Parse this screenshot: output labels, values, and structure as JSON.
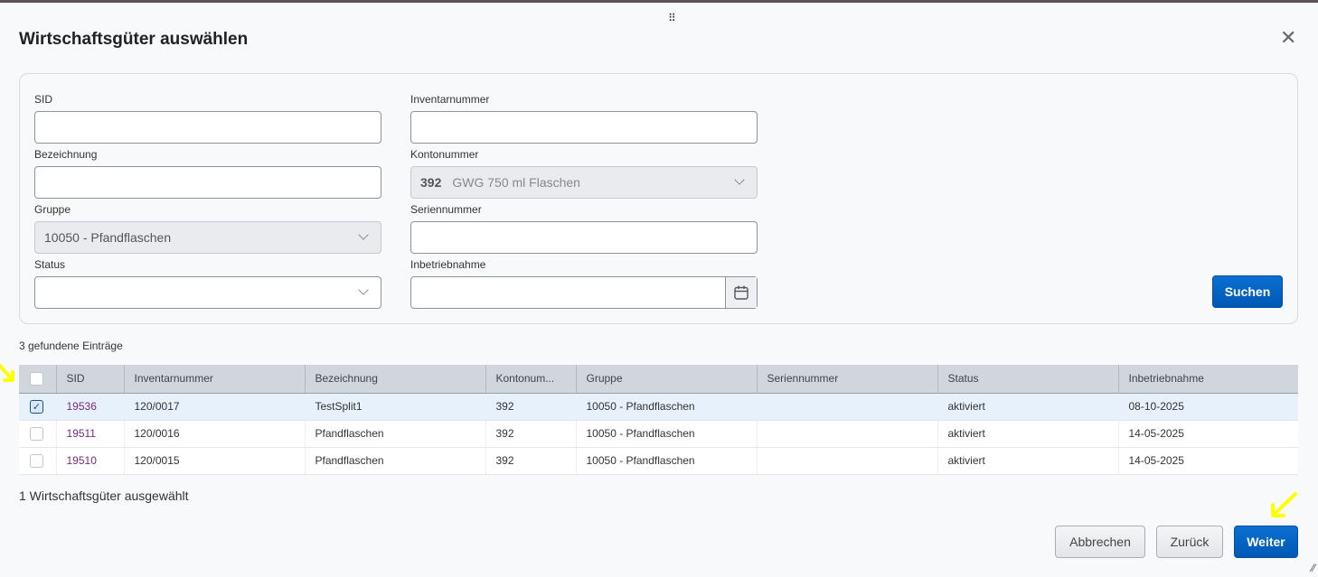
{
  "dialog": {
    "title": "Wirtschaftsgüter auswählen",
    "close_icon": "close-icon",
    "grip_icon": "drag-handle-icon"
  },
  "filters": {
    "sid": {
      "label": "SID",
      "value": ""
    },
    "inventarnummer": {
      "label": "Inventarnummer",
      "value": ""
    },
    "bezeichnung": {
      "label": "Bezeichnung",
      "value": ""
    },
    "kontonummer": {
      "label": "Kontonummer",
      "code": "392",
      "value": "GWG 750 ml Flaschen"
    },
    "gruppe": {
      "label": "Gruppe",
      "value": "10050 - Pfandflaschen"
    },
    "seriennummer": {
      "label": "Seriennummer",
      "value": ""
    },
    "status": {
      "label": "Status",
      "value": ""
    },
    "inbetriebnahme": {
      "label": "Inbetriebnahme",
      "value": ""
    },
    "search_label": "Suchen"
  },
  "result_count": "3 gefundene Einträge",
  "table": {
    "columns": [
      "SID",
      "Inventarnummer",
      "Bezeichnung",
      "Kontonum...",
      "Gruppe",
      "Seriennummer",
      "Status",
      "Inbetriebnahme"
    ],
    "rows": [
      {
        "checked": true,
        "sid": "19536",
        "inv": "120/0017",
        "bez": "TestSplit1",
        "konto": "392",
        "gruppe": "10050 - Pfandflaschen",
        "serie": "",
        "status": "aktiviert",
        "datum": "08-10-2025"
      },
      {
        "checked": false,
        "sid": "19511",
        "inv": "120/0016",
        "bez": "Pfandflaschen",
        "konto": "392",
        "gruppe": "10050 - Pfandflaschen",
        "serie": "",
        "status": "aktiviert",
        "datum": "14-05-2025"
      },
      {
        "checked": false,
        "sid": "19510",
        "inv": "120/0015",
        "bez": "Pfandflaschen",
        "konto": "392",
        "gruppe": "10050 - Pfandflaschen",
        "serie": "",
        "status": "aktiviert",
        "datum": "14-05-2025"
      }
    ]
  },
  "selected_count": "1 Wirtschaftsgüter ausgewählt",
  "footer": {
    "cancel": "Abbrechen",
    "back": "Zurück",
    "next": "Weiter"
  },
  "colors": {
    "primary": "#0b6fd1",
    "annotation": "#ffff00",
    "sid_link": "#7a2b7a"
  }
}
